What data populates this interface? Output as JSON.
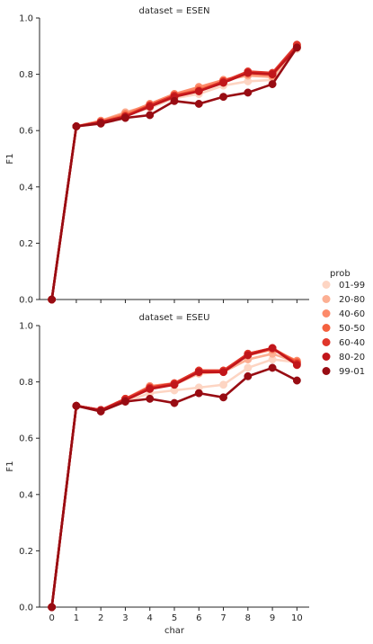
{
  "chart_data": {
    "type": "line",
    "xlabel": "char",
    "ylabel": "F1",
    "x": [
      0,
      1,
      2,
      3,
      4,
      5,
      6,
      7,
      8,
      9,
      10
    ],
    "ylim": [
      0,
      1.0
    ],
    "yticks": [
      "0.0",
      "0.2",
      "0.4",
      "0.6",
      "0.8",
      "1.0"
    ],
    "xticks": [
      "0",
      "1",
      "2",
      "3",
      "4",
      "5",
      "6",
      "7",
      "8",
      "9",
      "10"
    ],
    "legend": {
      "title": "prob",
      "placement": "right",
      "entries": [
        "01-99",
        "20-80",
        "40-60",
        "50-50",
        "60-40",
        "80-20",
        "99-01"
      ],
      "colors": [
        "#fdd5c3",
        "#fcaf93",
        "#fc8a6a",
        "#f4613f",
        "#e0362b",
        "#c1161b",
        "#980c13"
      ]
    },
    "panels": [
      {
        "title": "dataset = ESEN",
        "series": [
          {
            "name": "01-99",
            "values": [
              0.0,
              0.615,
              0.625,
              0.655,
              0.68,
              0.715,
              0.73,
              0.76,
              0.775,
              0.78,
              0.89
            ]
          },
          {
            "name": "20-80",
            "values": [
              0.0,
              0.615,
              0.635,
              0.665,
              0.69,
              0.73,
              0.75,
              0.78,
              0.795,
              0.79,
              0.9
            ]
          },
          {
            "name": "40-60",
            "values": [
              0.0,
              0.615,
              0.635,
              0.66,
              0.695,
              0.73,
              0.755,
              0.78,
              0.8,
              0.795,
              0.905
            ]
          },
          {
            "name": "50-50",
            "values": [
              0.0,
              0.615,
              0.63,
              0.655,
              0.69,
              0.725,
              0.745,
              0.775,
              0.805,
              0.8,
              0.9
            ]
          },
          {
            "name": "60-40",
            "values": [
              0.0,
              0.615,
              0.63,
              0.65,
              0.69,
              0.725,
              0.74,
              0.775,
              0.81,
              0.805,
              0.905
            ]
          },
          {
            "name": "80-20",
            "values": [
              0.0,
              0.615,
              0.63,
              0.65,
              0.685,
              0.72,
              0.74,
              0.77,
              0.805,
              0.8,
              0.895
            ]
          },
          {
            "name": "99-01",
            "values": [
              0.0,
              0.615,
              0.625,
              0.645,
              0.655,
              0.705,
              0.695,
              0.72,
              0.735,
              0.765,
              0.895
            ]
          }
        ]
      },
      {
        "title": "dataset = ESEU",
        "series": [
          {
            "name": "01-99",
            "values": [
              0.0,
              0.715,
              0.7,
              0.73,
              0.76,
              0.77,
              0.78,
              0.79,
              0.85,
              0.88,
              0.87
            ]
          },
          {
            "name": "20-80",
            "values": [
              0.0,
              0.715,
              0.7,
              0.735,
              0.78,
              0.79,
              0.83,
              0.835,
              0.88,
              0.9,
              0.87
            ]
          },
          {
            "name": "40-60",
            "values": [
              0.0,
              0.715,
              0.7,
              0.74,
              0.785,
              0.795,
              0.84,
              0.84,
              0.895,
              0.915,
              0.875
            ]
          },
          {
            "name": "50-50",
            "values": [
              0.0,
              0.715,
              0.7,
              0.74,
              0.78,
              0.795,
              0.84,
              0.84,
              0.9,
              0.92,
              0.87
            ]
          },
          {
            "name": "60-40",
            "values": [
              0.0,
              0.715,
              0.7,
              0.74,
              0.78,
              0.795,
              0.84,
              0.84,
              0.9,
              0.92,
              0.865
            ]
          },
          {
            "name": "80-20",
            "values": [
              0.0,
              0.715,
              0.7,
              0.735,
              0.775,
              0.79,
              0.835,
              0.835,
              0.895,
              0.92,
              0.86
            ]
          },
          {
            "name": "99-01",
            "values": [
              0.0,
              0.715,
              0.695,
              0.73,
              0.74,
              0.725,
              0.76,
              0.745,
              0.82,
              0.85,
              0.805
            ]
          }
        ]
      }
    ]
  }
}
